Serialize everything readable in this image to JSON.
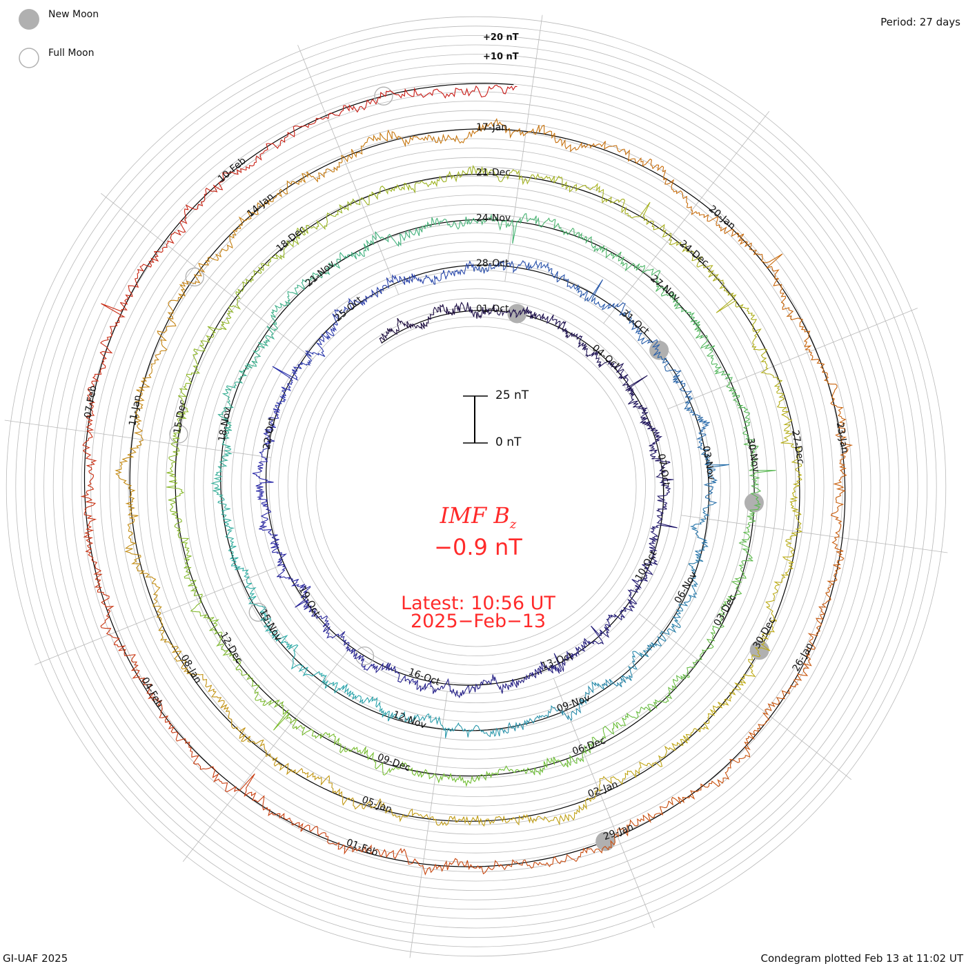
{
  "legend": {
    "new_moon": "New Moon",
    "full_moon": "Full Moon"
  },
  "period": "Period: 27 days",
  "footer_left": "GI-UAF 2025",
  "footer_right": "Condegram plotted Feb 13 at 11:02 UT",
  "center": {
    "title": "IMF B",
    "title_sub": "z",
    "value": "−0.9 nT",
    "latest": "Latest: 10:56 UT",
    "date": "2025−Feb−13",
    "scale_top": "25 nT",
    "scale_bottom": "0 nT"
  },
  "chart_data": {
    "type": "line",
    "title": "IMF Bz condegram",
    "period_days": 27,
    "start_date": "01-Oct-2024",
    "end_date": "13-Feb-2025",
    "latest_value_nT": -0.9,
    "ring_labels": [
      "+20 nT",
      "+10 nT"
    ],
    "date_labels": [
      "01-Oct",
      "04-Oct",
      "07-Oct",
      "10-Oct",
      "13-Oct",
      "16-Oct",
      "19-Oct",
      "22-Oct",
      "25-Oct",
      "28-Oct",
      "31-Oct",
      "03-Nov",
      "06-Nov",
      "09-Nov",
      "12-Nov",
      "15-Nov",
      "18-Nov",
      "21-Nov",
      "24-Nov",
      "27-Nov",
      "30-Nov",
      "03-Dec",
      "06-Dec",
      "09-Dec",
      "12-Dec",
      "15-Dec",
      "18-Dec",
      "21-Dec",
      "24-Dec",
      "27-Dec",
      "30-Dec",
      "02-Jan",
      "05-Jan",
      "08-Jan",
      "11-Jan",
      "14-Jan",
      "17-Jan",
      "20-Jan",
      "23-Jan",
      "26-Jan",
      "29-Jan",
      "01-Feb",
      "04-Feb",
      "07-Feb",
      "10-Feb"
    ],
    "new_moon_days": [
      1,
      31,
      61,
      90,
      120
    ],
    "full_moon_days": [
      16,
      45,
      75,
      104,
      134
    ],
    "colors": {
      "start": "#1a0a3a",
      "end": "#cc1010",
      "grid": "#b8b8b8",
      "moon": "#b0b0b0",
      "text_red": "#ff2a2a"
    }
  }
}
